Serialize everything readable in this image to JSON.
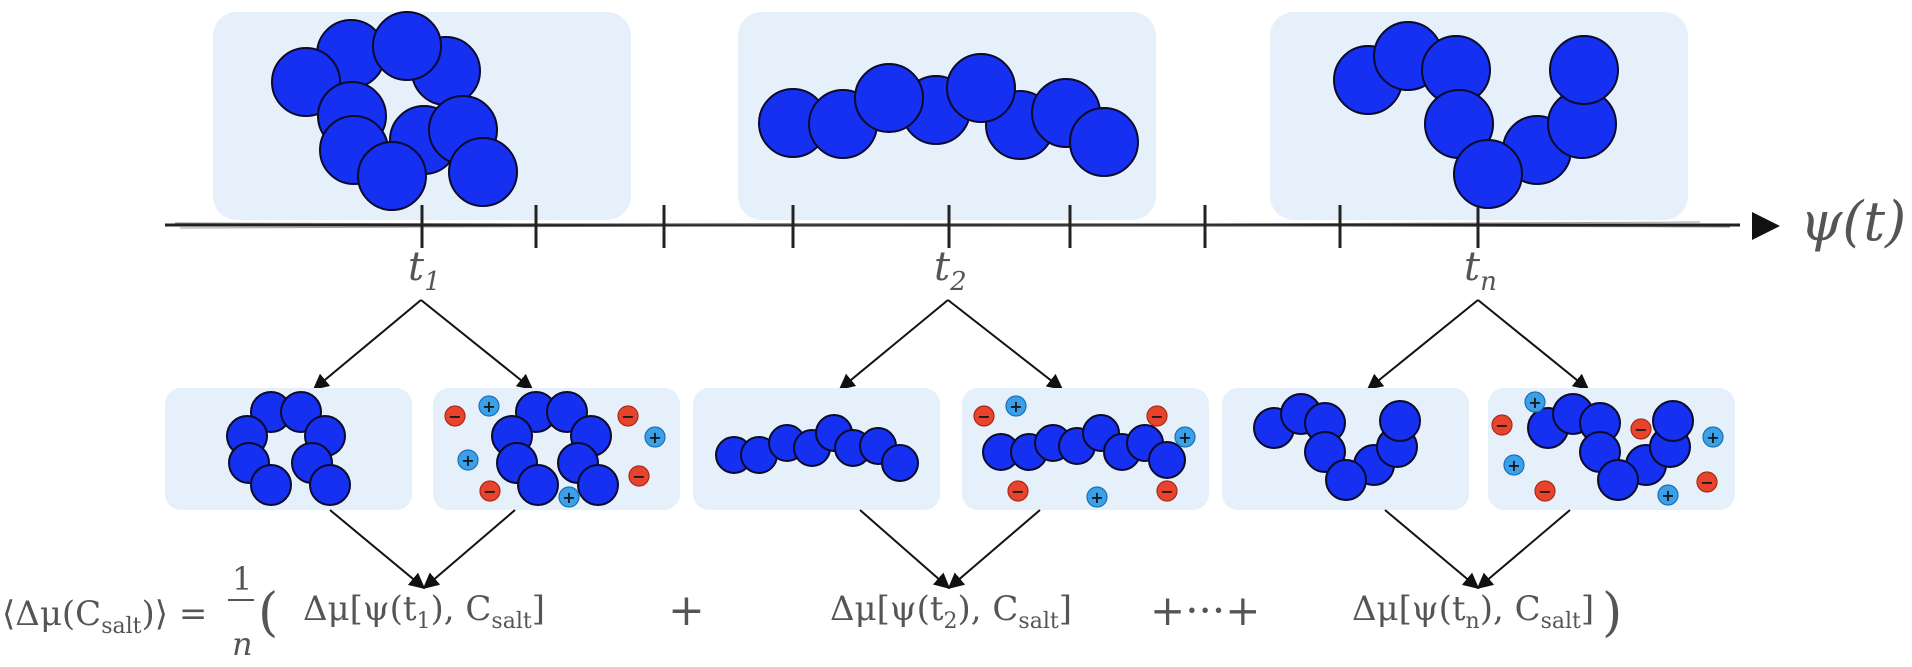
{
  "axis": {
    "label": "ψ(t)",
    "time_labels": [
      {
        "base": "t",
        "sub": "1"
      },
      {
        "base": "t",
        "sub": "2"
      },
      {
        "base": "t",
        "sub": "n"
      }
    ]
  },
  "equation": {
    "lhs": "⟨Δμ(C",
    "lhs_sub": "salt",
    "lhs_close": ")⟩ =",
    "frac_num": "1",
    "frac_den": "n",
    "open_paren": "(",
    "terms": [
      {
        "pre": "Δμ[ψ(t",
        "sub1": "1",
        "mid": "), C",
        "sub2": "salt",
        "post": "]"
      },
      {
        "pre": "Δμ[ψ(t",
        "sub1": "2",
        "mid": "), C",
        "sub2": "salt",
        "post": "]"
      },
      {
        "pre": "Δμ[ψ(t",
        "sub1": "n",
        "mid": "), C",
        "sub2": "salt",
        "post": "]"
      }
    ],
    "plus": "+",
    "ellipsis_plus": "+···+",
    "close_paren": ")"
  },
  "ions": {
    "positive": "+",
    "negative": "−"
  },
  "colors": {
    "panel": "#e6f0fb",
    "bead": "#1530f0",
    "bead_stroke": "#0a0a2a",
    "positive_ion": "#3aa0ea",
    "negative_ion": "#e8432c",
    "text": "#555555",
    "arrow": "#111111"
  }
}
